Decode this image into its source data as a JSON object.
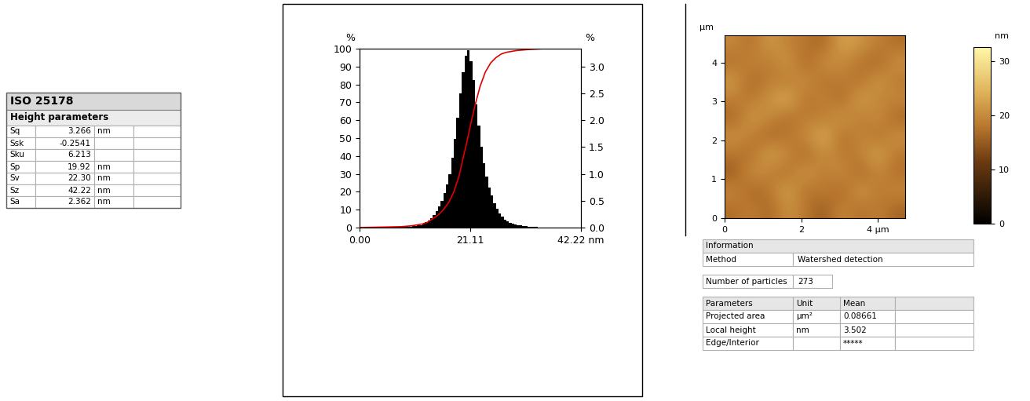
{
  "table": {
    "title": "ISO 25178",
    "subtitle": "Height parameters",
    "rows": [
      [
        "Sq",
        "3.266",
        "nm"
      ],
      [
        "Ssk",
        "-0.2541",
        null
      ],
      [
        "Sku",
        "6.213",
        null
      ],
      [
        "Sp",
        "19.92",
        "nm"
      ],
      [
        "Sv",
        "22.30",
        "nm"
      ],
      [
        "Sz",
        "42.22",
        "nm"
      ],
      [
        "Sa",
        "2.362",
        "nm"
      ]
    ]
  },
  "chart_data": [
    {
      "type": "histogram",
      "y_label": "%",
      "y2_label": "%",
      "xlim": [
        0,
        42.22
      ],
      "xticks": [
        {
          "value": 0,
          "label": "0.00"
        },
        21.11,
        {
          "value": 42.22,
          "label": "42.22 nm"
        }
      ],
      "ylim": [
        0,
        100
      ],
      "yticks": [
        0,
        10,
        20,
        30,
        40,
        50,
        60,
        70,
        80,
        90,
        100
      ],
      "y2lim": [
        0,
        3.333
      ],
      "y2ticks": [
        {
          "value": 0,
          "label": "0.0"
        },
        0.5,
        {
          "value": 1,
          "label": "1.0"
        },
        1.5,
        {
          "value": 2,
          "label": "2.0"
        },
        2.5,
        {
          "value": 3,
          "label": "3.0"
        }
      ],
      "series": [
        {
          "type": "histogram",
          "color": "#000000",
          "axis": "y2",
          "bins": [
            0.0,
            0.5,
            1.0,
            1.5,
            2.0,
            2.5,
            3.0,
            3.5,
            4.0,
            4.5,
            5.0,
            5.5,
            6.0,
            6.5,
            7.0,
            7.5,
            8.0,
            8.5,
            9.0,
            9.5,
            10.0,
            10.5,
            11.0,
            11.5,
            12.0,
            12.5,
            13.0,
            13.5,
            14.0,
            14.5,
            15.0,
            15.5,
            16.0,
            16.5,
            17.0,
            17.5,
            18.0,
            18.5,
            19.0,
            19.5,
            20.0,
            20.5,
            21.0,
            21.5,
            22.0,
            22.5,
            23.0,
            23.5,
            24.0,
            24.5,
            25.0,
            25.5,
            26.0,
            26.5,
            27.0,
            27.5,
            28.0,
            28.5,
            29.0,
            29.5,
            30.0,
            30.5,
            31.0,
            31.5,
            32.0,
            32.5,
            33.0,
            33.5,
            34.0,
            34.5,
            35.0,
            35.5,
            36.0,
            36.5,
            37.0,
            37.5,
            38.0,
            38.5,
            39.0,
            39.5,
            40.0,
            40.5,
            41.0,
            41.5,
            42.0
          ],
          "counts": [
            0,
            0,
            0,
            0,
            0,
            0,
            0,
            0,
            0,
            0,
            0,
            0,
            0.01,
            0.01,
            0.01,
            0.01,
            0.01,
            0.01,
            0.02,
            0.02,
            0.03,
            0.03,
            0.05,
            0.05,
            0.08,
            0.1,
            0.13,
            0.18,
            0.24,
            0.3,
            0.4,
            0.5,
            0.65,
            0.8,
            1.0,
            1.3,
            1.65,
            2.05,
            2.5,
            2.9,
            3.2,
            3.3,
            3.1,
            2.75,
            2.3,
            1.9,
            1.5,
            1.2,
            0.95,
            0.75,
            0.6,
            0.45,
            0.35,
            0.27,
            0.2,
            0.15,
            0.11,
            0.09,
            0.07,
            0.06,
            0.05,
            0.04,
            0.03,
            0.03,
            0.02,
            0.02,
            0.01,
            0.01,
            0,
            0,
            0,
            0,
            0,
            0,
            0,
            0,
            0,
            0,
            0,
            0,
            0,
            0,
            0,
            0
          ]
        },
        {
          "type": "line",
          "color": "#e00000",
          "x": [
            0,
            8,
            10,
            12,
            13,
            14,
            15,
            16,
            17,
            18,
            19,
            20,
            20.5,
            21,
            22,
            23,
            24,
            25,
            26,
            27,
            28,
            30,
            32,
            35,
            42.22
          ],
          "values": [
            0,
            0.5,
            1,
            2,
            3,
            5,
            7,
            10,
            14,
            20,
            29,
            42,
            48,
            55,
            68,
            79,
            87,
            92,
            95,
            97,
            98,
            99,
            99.5,
            100,
            100
          ]
        }
      ]
    },
    {
      "type": "heatmap",
      "y_label": "µm",
      "xlim": [
        0,
        4.7
      ],
      "ylim": [
        0,
        4.7
      ],
      "xticks": [
        0,
        2,
        {
          "value": 4,
          "label": "4 µm"
        }
      ],
      "yticks": [
        0,
        1,
        2,
        3,
        4
      ],
      "cells": [
        [
          17,
          19,
          16,
          21,
          18,
          15,
          20,
          17,
          19,
          16
        ],
        [
          20,
          16,
          18,
          23,
          17,
          19,
          16,
          22,
          18,
          20
        ],
        [
          15,
          21,
          19,
          17,
          22,
          18,
          21,
          16,
          20,
          17
        ],
        [
          18,
          17,
          23,
          20,
          16,
          21,
          18,
          19,
          23,
          18
        ],
        [
          21,
          19,
          16,
          18,
          20,
          24,
          17,
          20,
          17,
          21
        ],
        [
          16,
          22,
          20,
          17,
          19,
          18,
          22,
          18,
          21,
          16
        ],
        [
          19,
          18,
          21,
          24,
          17,
          20,
          16,
          23,
          19,
          20
        ],
        [
          22,
          16,
          19,
          18,
          21,
          17,
          19,
          17,
          22,
          18
        ],
        [
          17,
          20,
          18,
          22,
          16,
          21,
          20,
          18,
          16,
          21
        ],
        [
          20,
          17,
          22,
          19,
          18,
          16,
          23,
          21,
          19,
          17
        ]
      ],
      "colorbar": {
        "label": "nm",
        "range": [
          0,
          32.5
        ],
        "ticks": [
          0,
          10,
          20,
          30
        ]
      }
    }
  ],
  "info": {
    "title": "Information",
    "rows": [
      [
        "Method",
        "Watershed detection"
      ],
      [
        "Number of particles",
        "273"
      ]
    ],
    "parameters": {
      "header": [
        "Parameters",
        "Unit",
        "Mean"
      ],
      "rows": [
        [
          "Projected area",
          "µm²",
          "0.08661"
        ],
        [
          "Local height",
          "nm",
          "3.502"
        ],
        [
          "Edge/Interior",
          null,
          "*****"
        ]
      ]
    }
  }
}
